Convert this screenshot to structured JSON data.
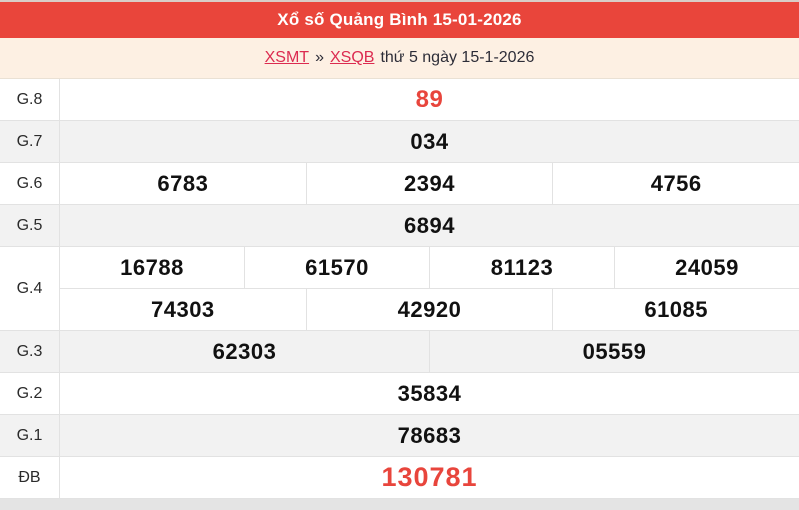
{
  "header": {
    "title": "Xổ số Quảng Bình 15-01-2026"
  },
  "breadcrumb": {
    "links": [
      {
        "label": "XSMT"
      },
      {
        "label": "XSQB"
      }
    ],
    "separator": "»",
    "suffix": "thứ 5 ngày 15-1-2026"
  },
  "results": {
    "rows": [
      {
        "key": "g8",
        "label": "G.8",
        "highlight": true,
        "groups": [
          [
            "89"
          ]
        ]
      },
      {
        "key": "g7",
        "label": "G.7",
        "highlight": false,
        "groups": [
          [
            "034"
          ]
        ]
      },
      {
        "key": "g6",
        "label": "G.6",
        "highlight": false,
        "groups": [
          [
            "6783",
            "2394",
            "4756"
          ]
        ]
      },
      {
        "key": "g5",
        "label": "G.5",
        "highlight": false,
        "groups": [
          [
            "6894"
          ]
        ]
      },
      {
        "key": "g4",
        "label": "G.4",
        "highlight": false,
        "groups": [
          [
            "16788",
            "61570",
            "81123",
            "24059"
          ],
          [
            "74303",
            "42920",
            "61085"
          ]
        ]
      },
      {
        "key": "g3",
        "label": "G.3",
        "highlight": false,
        "groups": [
          [
            "62303",
            "05559"
          ]
        ]
      },
      {
        "key": "g2",
        "label": "G.2",
        "highlight": false,
        "groups": [
          [
            "35834"
          ]
        ]
      },
      {
        "key": "g1",
        "label": "G.1",
        "highlight": false,
        "groups": [
          [
            "78683"
          ]
        ]
      },
      {
        "key": "db",
        "label": "ĐB",
        "highlight": true,
        "groups": [
          [
            "130781"
          ]
        ]
      }
    ]
  },
  "colors": {
    "header_bg": "#e9453b",
    "accent_red": "#e8453c",
    "link_red": "#dc2b50",
    "page_bg": "#fdf0e3",
    "row_alt_bg": "#f2f2f2",
    "border": "#e2e2e2",
    "number_text": "#111111"
  }
}
